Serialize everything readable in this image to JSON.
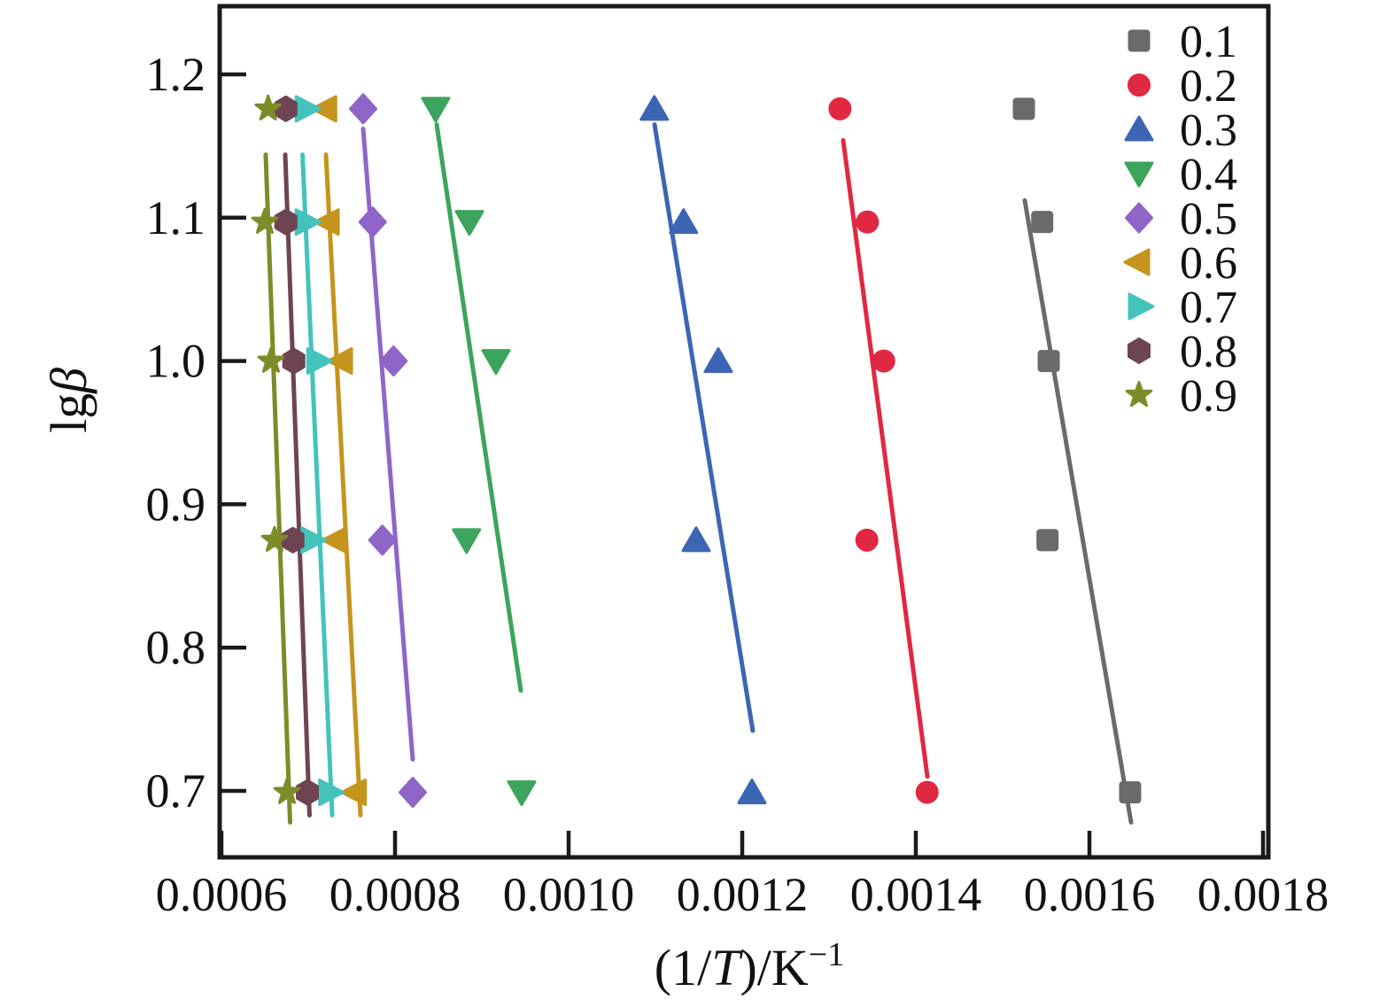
{
  "chart_data": {
    "type": "scatter",
    "title": "",
    "xlabel_text": "(1/T)/K−1",
    "xlabel_parts": [
      {
        "t": "(1/"
      },
      {
        "t": "T",
        "italic": true
      },
      {
        "t": ")/K"
      },
      {
        "t": "−1",
        "sup": true
      }
    ],
    "ylabel_text": "lgβ",
    "ylabel_parts": [
      {
        "t": "lg"
      },
      {
        "t": "β",
        "italic": true
      }
    ],
    "xlim": [
      0.0006,
      0.0018
    ],
    "ylim": [
      0.655,
      1.247
    ],
    "grid": false,
    "legend_position": "top-right-inside",
    "x_ticks": [
      {
        "v": 0.0006,
        "label": "0.0006"
      },
      {
        "v": 0.0008,
        "label": "0.0008"
      },
      {
        "v": 0.001,
        "label": "0.0010"
      },
      {
        "v": 0.0012,
        "label": "0.0012"
      },
      {
        "v": 0.0014,
        "label": "0.0014"
      },
      {
        "v": 0.0016,
        "label": "0.0016"
      },
      {
        "v": 0.0018,
        "label": "0.0018"
      }
    ],
    "y_ticks": [
      {
        "v": 0.7,
        "label": "0.7"
      },
      {
        "v": 0.8,
        "label": "0.8"
      },
      {
        "v": 0.9,
        "label": "0.9"
      },
      {
        "v": 1.0,
        "label": "1.0"
      },
      {
        "v": 1.1,
        "label": "1.1"
      },
      {
        "v": 1.2,
        "label": "1.2"
      }
    ],
    "lgB_values": [
      1.176,
      1.097,
      1.0,
      0.875,
      0.699
    ],
    "series": [
      {
        "label": "0.1",
        "marker": "square",
        "color": "#6a6a6a",
        "x": [
          0.0015245,
          0.0015456,
          0.0015531,
          0.0015517,
          0.0016469
        ],
        "y": [
          1.176,
          1.097,
          1.0,
          0.875,
          0.699
        ],
        "line": [
          0.0015255,
          1.112,
          0.001648,
          0.678
        ]
      },
      {
        "label": "0.2",
        "marker": "circle",
        "color": "#e02843",
        "x": [
          0.0013126,
          0.0013442,
          0.001363,
          0.0013436,
          0.001413
        ],
        "y": [
          1.176,
          1.097,
          1.0,
          0.875,
          0.699
        ],
        "line": [
          0.0013163,
          1.154,
          0.0014133,
          0.71
        ]
      },
      {
        "label": "0.3",
        "marker": "triangle-up",
        "color": "#3c66b4",
        "x": [
          0.0010987,
          0.0011324,
          0.0011724,
          0.0011469,
          0.0012112
        ],
        "y": [
          1.176,
          1.097,
          1.0,
          0.875,
          0.699
        ],
        "line": [
          0.001099,
          1.165,
          0.0012122,
          0.742
        ]
      },
      {
        "label": "0.4",
        "marker": "triangle-down",
        "color": "#3ca45c",
        "x": [
          0.0008469,
          0.0008857,
          0.0009163,
          0.0008824,
          0.0009459
        ],
        "y": [
          1.176,
          1.097,
          1.0,
          0.875,
          0.699
        ],
        "line": [
          0.000848,
          1.165,
          0.0009449,
          0.77
        ]
      },
      {
        "label": "0.5",
        "marker": "diamond",
        "color": "#9065c8",
        "x": [
          0.0007633,
          0.0007742,
          0.0007983,
          0.0007854,
          0.0008204
        ],
        "y": [
          1.176,
          1.097,
          1.0,
          0.875,
          0.699
        ],
        "line": [
          0.0007633,
          1.162,
          0.0008204,
          0.722
        ]
      },
      {
        "label": "0.6",
        "marker": "triangle-left",
        "color": "#c5941d",
        "x": [
          0.0007207,
          0.0007235,
          0.0007388,
          0.0007327,
          0.0007548
        ],
        "y": [
          1.176,
          1.097,
          1.0,
          0.875,
          0.699
        ],
        "line": [
          0.0007204,
          1.144,
          0.0007602,
          0.683
        ]
      },
      {
        "label": "0.7",
        "marker": "triangle-right",
        "color": "#43c3bc",
        "x": [
          0.0006972,
          0.0006972,
          0.0007105,
          0.0007038,
          0.0007242
        ],
        "y": [
          1.176,
          1.097,
          1.0,
          0.875,
          0.699
        ],
        "line": [
          0.0006934,
          1.144,
          0.0007276,
          0.683
        ]
      },
      {
        "label": "0.8",
        "marker": "hexagon",
        "color": "#6e4452",
        "x": [
          0.0006742,
          0.0006742,
          0.0006834,
          0.0006823,
          0.000699
        ],
        "y": [
          1.176,
          1.097,
          1.0,
          0.875,
          0.699
        ],
        "line": [
          0.0006735,
          1.144,
          0.0007015,
          0.683
        ]
      },
      {
        "label": "0.9",
        "marker": "star",
        "color": "#7d8b28",
        "x": [
          0.0006538,
          0.00065,
          0.0006571,
          0.0006612,
          0.0006755
        ],
        "y": [
          1.176,
          1.097,
          1.0,
          0.875,
          0.699
        ],
        "line": [
          0.000651,
          1.144,
          0.0006791,
          0.678
        ]
      }
    ],
    "axis_color": "#1a1a1a"
  }
}
